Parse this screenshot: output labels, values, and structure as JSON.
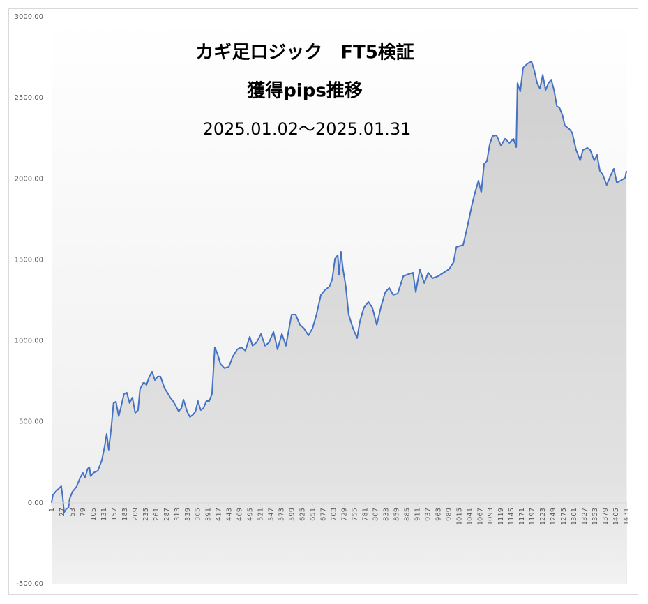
{
  "chart_data": {
    "type": "area",
    "title": "カギ足ロジック　FT5検証",
    "subtitle": "獲得pips推移",
    "period": "2025.01.02～2025.01.31",
    "color": "#4472c4",
    "x": [
      1,
      4,
      11,
      20,
      25,
      29,
      32,
      37,
      43,
      46,
      53,
      63,
      72,
      79,
      84,
      91,
      95,
      98,
      105,
      116,
      126,
      133,
      138,
      143,
      150,
      155,
      161,
      168,
      173,
      181,
      188,
      195,
      202,
      209,
      216,
      221,
      230,
      237,
      244,
      251,
      258,
      265,
      272,
      282,
      289,
      296,
      303,
      310,
      317,
      324,
      329,
      338,
      345,
      352,
      359,
      365,
      372,
      379,
      386,
      393,
      400,
      407,
      414,
      421,
      431,
      442,
      452,
      463,
      473,
      483,
      494,
      501,
      511,
      522,
      532,
      542,
      553,
      563,
      574,
      584,
      598,
      608,
      619,
      629,
      640,
      650,
      660,
      671,
      681,
      692,
      699,
      706,
      713,
      716,
      721,
      726,
      733,
      740,
      751,
      761,
      768,
      778,
      789,
      799,
      810,
      820,
      831,
      841,
      851,
      862,
      876,
      890,
      900,
      907,
      917,
      928,
      938,
      949,
      963,
      976,
      990,
      1001,
      1008,
      1025,
      1035,
      1046,
      1053,
      1063,
      1070,
      1077,
      1084,
      1091,
      1098,
      1108,
      1119,
      1129,
      1140,
      1150,
      1157,
      1160,
      1167,
      1174,
      1185,
      1195,
      1202,
      1209,
      1216,
      1223,
      1230,
      1237,
      1244,
      1251,
      1258,
      1265,
      1272,
      1278,
      1289,
      1296,
      1306,
      1316,
      1323,
      1334,
      1341,
      1351,
      1358,
      1365,
      1372,
      1382,
      1393,
      1400,
      1407,
      1417,
      1428,
      1431
    ],
    "values": [
      0,
      47,
      69,
      90,
      103,
      26,
      -60,
      -39,
      -30,
      26,
      69,
      99,
      155,
      185,
      155,
      211,
      220,
      164,
      185,
      198,
      263,
      349,
      426,
      327,
      478,
      615,
      624,
      534,
      585,
      671,
      680,
      615,
      650,
      555,
      572,
      701,
      744,
      727,
      779,
      809,
      757,
      779,
      779,
      706,
      680,
      650,
      628,
      598,
      564,
      585,
      637,
      564,
      530,
      542,
      564,
      628,
      572,
      585,
      628,
      628,
      671,
      960,
      917,
      857,
      831,
      839,
      904,
      947,
      960,
      939,
      1025,
      969,
      990,
      1042,
      969,
      990,
      1055,
      947,
      1042,
      969,
      1162,
      1162,
      1098,
      1076,
      1033,
      1076,
      1162,
      1283,
      1313,
      1334,
      1377,
      1506,
      1528,
      1407,
      1549,
      1442,
      1334,
      1162,
      1076,
      1016,
      1119,
      1205,
      1240,
      1205,
      1098,
      1205,
      1300,
      1326,
      1283,
      1291,
      1399,
      1412,
      1420,
      1300,
      1442,
      1356,
      1420,
      1386,
      1399,
      1420,
      1442,
      1485,
      1579,
      1592,
      1700,
      1829,
      1902,
      1988,
      1915,
      2092,
      2109,
      2212,
      2264,
      2268,
      2204,
      2247,
      2221,
      2247,
      2195,
      2590,
      2539,
      2685,
      2711,
      2724,
      2668,
      2590,
      2556,
      2642,
      2547,
      2590,
      2612,
      2547,
      2449,
      2436,
      2393,
      2328,
      2307,
      2285,
      2178,
      2113,
      2178,
      2191,
      2178,
      2113,
      2148,
      2049,
      2027,
      1962,
      2027,
      2062,
      1976,
      1989,
      2006,
      2049
    ],
    "xlim": [
      1,
      1431
    ],
    "xticks": [
      1,
      27,
      53,
      79,
      105,
      131,
      157,
      183,
      209,
      235,
      261,
      287,
      313,
      339,
      365,
      391,
      417,
      443,
      469,
      495,
      521,
      547,
      573,
      599,
      625,
      651,
      677,
      703,
      729,
      755,
      781,
      807,
      833,
      859,
      885,
      911,
      937,
      963,
      989,
      1015,
      1041,
      1067,
      1093,
      1119,
      1145,
      1171,
      1197,
      1223,
      1249,
      1275,
      1301,
      1327,
      1353,
      1379,
      1405,
      1431
    ],
    "ylim": [
      -500,
      3000
    ],
    "yticks": [
      {
        "value": -500,
        "label": "-500.00"
      },
      {
        "value": 0,
        "label": "0.00"
      },
      {
        "value": 500,
        "label": "500.00"
      },
      {
        "value": 1000,
        "label": "1000.00"
      },
      {
        "value": 1500,
        "label": "1500.00"
      },
      {
        "value": 2000,
        "label": "2000.00"
      },
      {
        "value": 2500,
        "label": "2500.00"
      },
      {
        "value": 3000,
        "label": "3000.00"
      }
    ]
  }
}
